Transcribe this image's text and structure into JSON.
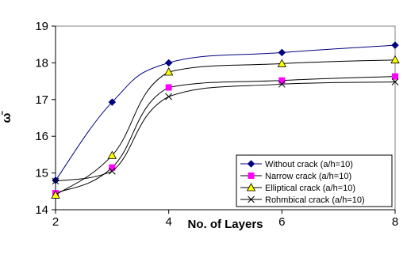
{
  "chart_data": {
    "type": "line",
    "xlabel": "No. of Layers",
    "ylabel": "ω̄",
    "x": [
      2,
      3,
      4,
      6,
      8
    ],
    "xticks": [
      2,
      4,
      6,
      8
    ],
    "yticks": [
      14,
      15,
      16,
      17,
      18,
      19
    ],
    "xlim": [
      2,
      8
    ],
    "ylim": [
      14,
      19
    ],
    "grid": false,
    "legend_position": "bottom-right",
    "series": [
      {
        "name": "Without crack (a/h=10)",
        "marker": "diamond",
        "color": "#000080",
        "marker_color": "#000080",
        "values": [
          14.8,
          16.93,
          18.0,
          18.28,
          18.48
        ]
      },
      {
        "name": "Narrow crack (a/h=10)",
        "marker": "square",
        "color": "#000000",
        "marker_color": "#ff00ff",
        "values": [
          14.45,
          15.15,
          17.33,
          17.52,
          17.63
        ]
      },
      {
        "name": "Elliptical crack (a/h=10)",
        "marker": "triangle",
        "color": "#000000",
        "marker_color": "#ffff00",
        "values": [
          14.4,
          15.48,
          17.75,
          17.98,
          18.08
        ]
      },
      {
        "name": "Rohmbical crack (a/h=10)",
        "marker": "x",
        "color": "#000000",
        "marker_color": "#000000",
        "values": [
          14.78,
          15.05,
          17.08,
          17.42,
          17.48
        ]
      }
    ]
  }
}
